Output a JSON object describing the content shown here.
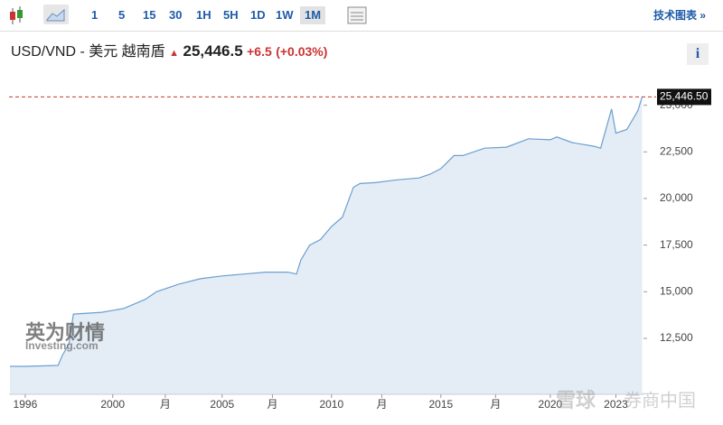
{
  "toolbar": {
    "intervals": [
      "1",
      "5",
      "15",
      "30",
      "1H",
      "5H",
      "1D",
      "1W",
      "1M"
    ],
    "active_interval": 8,
    "tech_chart": "技术图表 »"
  },
  "header": {
    "symbol": "USD/VND - 美元 越南盾",
    "price": "25,446.5",
    "change": "+6.5",
    "change_pct": "(+0.03%)",
    "info": "i"
  },
  "watermarks": [
    "英为财情",
    "Investing.com",
    "雪球",
    "券商中国"
  ],
  "chart_data": {
    "type": "area",
    "line_color": "#6a9fcf",
    "fill_color": "#e4edf6",
    "x": [
      1995.3,
      1996,
      1997.5,
      1997.7,
      1998.0,
      1998.2,
      1999.5,
      2000.5,
      2001.5,
      2002,
      2003,
      2004,
      2005,
      2006,
      2007,
      2008,
      2008.4,
      2008.6,
      2009,
      2009.5,
      2010,
      2010.5,
      2011,
      2011.3,
      2012,
      2013,
      2014,
      2014.5,
      2015,
      2015.6,
      2016,
      2017,
      2018,
      2019,
      2020,
      2020.3,
      2021,
      2022,
      2022.3,
      2022.8,
      2023,
      2023.5,
      2024,
      2024.2
    ],
    "values": [
      11000,
      11000,
      11050,
      11600,
      12200,
      13800,
      13900,
      14100,
      14600,
      15000,
      15400,
      15700,
      15850,
      15950,
      16050,
      16050,
      15950,
      16700,
      17500,
      17800,
      18500,
      19000,
      20600,
      20800,
      20850,
      21000,
      21100,
      21300,
      21600,
      22300,
      22300,
      22700,
      22750,
      23200,
      23150,
      23300,
      23000,
      22800,
      22700,
      24800,
      23500,
      23700,
      24700,
      25446.5
    ],
    "xlim": [
      1995.26,
      2024.26
    ],
    "ylim": [
      9500,
      25950
    ],
    "xticks": [
      1996,
      2000,
      {
        "value": 2002.4,
        "label": "月"
      },
      2005,
      {
        "value": 2007.3,
        "label": "月"
      },
      2010,
      {
        "value": 2012.3,
        "label": "月"
      },
      2015,
      {
        "value": 2017.5,
        "label": "月"
      },
      2020,
      2023
    ],
    "yticks": [
      {
        "value": 12500,
        "label": "12,500"
      },
      {
        "value": 15000,
        "label": "15,000"
      },
      {
        "value": 17500,
        "label": "17,500"
      },
      {
        "value": 20000,
        "label": "20,000"
      },
      {
        "value": 22500,
        "label": "22,500"
      },
      {
        "value": 25000,
        "label": "25,000"
      }
    ],
    "reference_line": {
      "value": 25446.5,
      "label": "25,446.50",
      "color": "#c0392b"
    }
  }
}
